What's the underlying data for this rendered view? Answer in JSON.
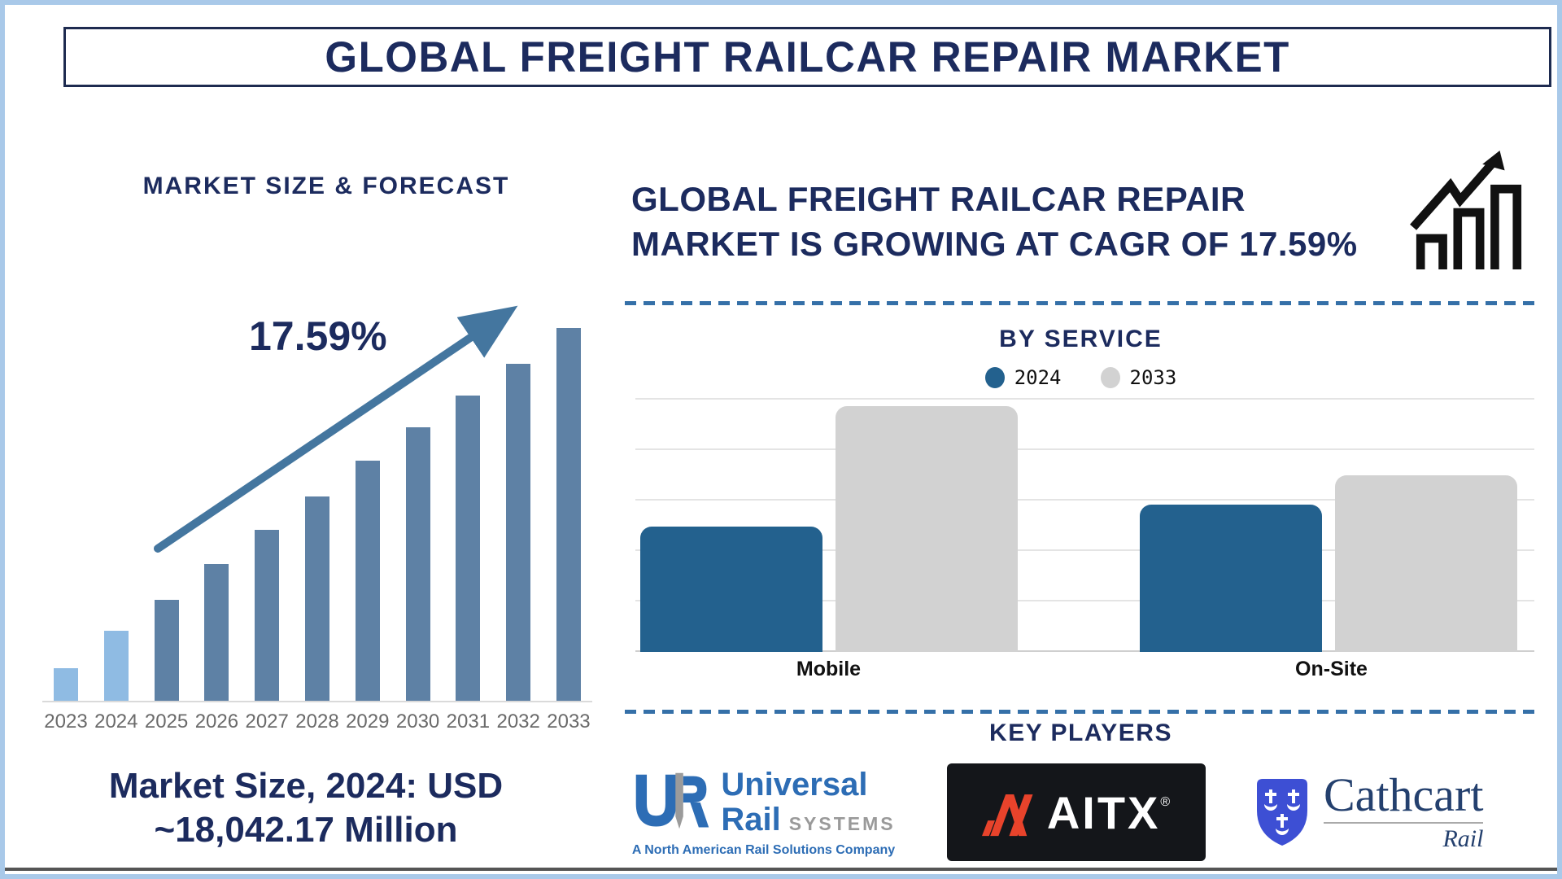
{
  "page": {
    "title": "GLOBAL FREIGHT RAILCAR REPAIR MARKET"
  },
  "colors": {
    "navy": "#1c2b5e",
    "page_border": "#a9c9e9",
    "bar_light_blue": "#8fbbe3",
    "bar_steel_blue": "#5e81a5",
    "arrow_blue": "#44769f",
    "service_blue": "#23618e",
    "service_gray": "#d2d2d2",
    "divider_blue": "#3570a8"
  },
  "left_panel": {
    "heading": "MARKET SIZE & FORECAST",
    "cagr_label": "17.59%",
    "market_size_line1": "Market Size, 2024: USD",
    "market_size_line2": "~18,042.17 Million"
  },
  "right_panel": {
    "heading_line1": "GLOBAL FREIGHT RAILCAR REPAIR",
    "heading_line2": "MARKET IS GROWING AT CAGR OF 17.59%",
    "by_service_title": "BY SERVICE",
    "legend": [
      {
        "label": "2024",
        "color": "#23618e"
      },
      {
        "label": "2033",
        "color": "#d2d2d2"
      }
    ],
    "key_players_title": "KEY PLAYERS"
  },
  "key_players": [
    {
      "name": "Universal Rail Systems",
      "word1": "Universal",
      "word2": "Rail",
      "word3": "SYSTEMS",
      "tagline": "A North American Rail Solutions Company"
    },
    {
      "name": "AITX",
      "wordmark": "AITX",
      "registered": "®"
    },
    {
      "name": "Cathcart Rail",
      "word1": "Cathcart",
      "word2": "Rail"
    }
  ],
  "chart_data": [
    {
      "type": "bar",
      "title": "MARKET SIZE & FORECAST",
      "categories": [
        "2023",
        "2024",
        "2025",
        "2026",
        "2027",
        "2028",
        "2029",
        "2030",
        "2031",
        "2032",
        "2033"
      ],
      "values": [
        8.7,
        18.8,
        27.1,
        36.7,
        45.9,
        54.8,
        64.4,
        73.4,
        81.9,
        90.4,
        100
      ],
      "unit": "relative bar height, % of 2033 bar (no y-axis shown)",
      "bar_colors": [
        "#8fbbe3",
        "#8fbbe3",
        "#5e81a5",
        "#5e81a5",
        "#5e81a5",
        "#5e81a5",
        "#5e81a5",
        "#5e81a5",
        "#5e81a5",
        "#5e81a5",
        "#5e81a5"
      ],
      "known_values": {
        "2024": "USD 18,042.17 Million"
      },
      "annotations": [
        "17.59% CAGR trend arrow"
      ],
      "xlabel": "",
      "ylabel": "",
      "grid": false
    },
    {
      "type": "bar",
      "title": "BY SERVICE",
      "categories": [
        "Mobile",
        "On-Site"
      ],
      "series": [
        {
          "name": "2024",
          "color": "#23618e",
          "values": [
            51,
            60
          ]
        },
        {
          "name": "2033",
          "color": "#d2d2d2",
          "values": [
            100,
            72
          ]
        }
      ],
      "unit": "relative bar height, % of tallest bar (no y-axis shown)",
      "grid": true,
      "legend_position": "top"
    }
  ]
}
